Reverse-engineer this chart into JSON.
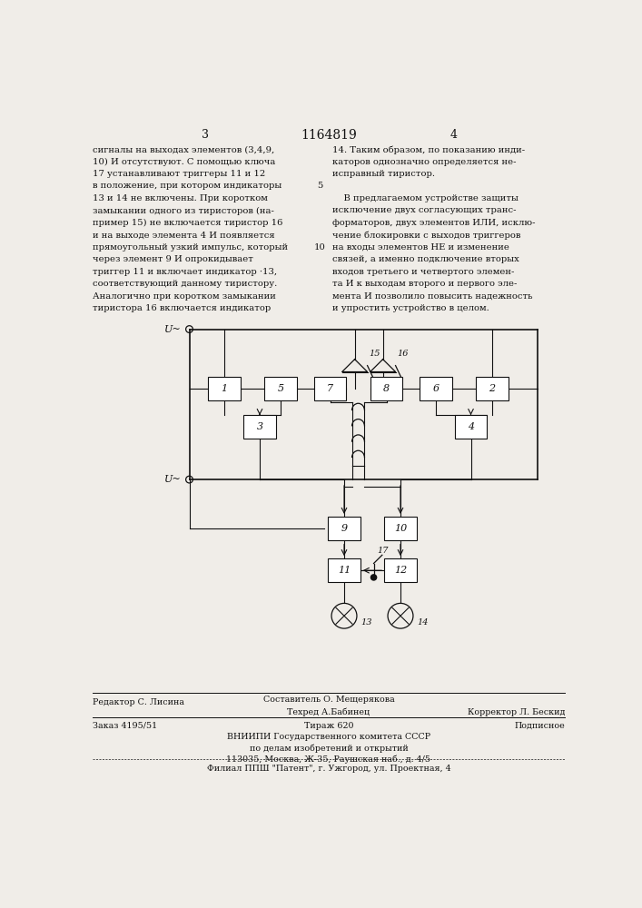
{
  "bg_color": "#f0ede8",
  "text_color": "#111111",
  "line_color": "#111111",
  "page_number_left": "3",
  "patent_number": "1164819",
  "page_number_right": "4",
  "col1_text": [
    "сигналы на выходах элементов (3,4,9,",
    "10) И отсутствуют. С помощью ключа",
    "17 устанавливают триггеры 11 и 12",
    "в положение, при котором индикаторы",
    "13 и 14 не включены. При коротком",
    "замыкании одного из тиристоров (на-",
    "пример 15) не включается тиристор 16",
    "и на выходе элемента 4 И появляется",
    "прямоугольный узкий импульс, который",
    "через элемент 9 И опрокидывает",
    "триггер 11 и включает индикатор ·13,",
    "соответствующий данному тиристору.",
    "Аналогично при коротком замыкании",
    "тиристора 16 включается индикатор"
  ],
  "col2_text": [
    "14. Таким образом, по показанию инди-",
    "каторов однозначно определяется не-",
    "исправный тиристор.",
    "",
    "    В предлагаемом устройстве защиты",
    "исключение двух согласующих транс-",
    "форматоров, двух элементов ИЛИ, исклю-",
    "чение блокировки с выходов триггеров",
    "на входы элементов НЕ и изменение",
    "связей, а именно подключение вторых",
    "входов третьего и четвертого элемен-",
    "та И к выходам второго и первого эле-",
    "мента И позволило повысить надежность",
    "и упростить устройство в целом."
  ],
  "line_numbers": [
    4,
    9
  ],
  "footer_editor": "Редактор С. Лисина",
  "footer_composer": "Составитель О. Мещерякова",
  "footer_techred": "Техред А.Бабинец",
  "footer_corrector": "Корректор Л. Бескид",
  "footer_order": "Заказ 4195/51",
  "footer_tirazh": "Тираж 620",
  "footer_podpisnoe": "Подписное",
  "footer_vnipi": "ВНИИПИ Государственного комитета СССР",
  "footer_po_delam": "по делам изобретений и открытий",
  "footer_address": "113035, Москва, Ж-35, Раушская наб., д. 4/5",
  "footer_filial": "Филиал ППШ \"Патент\", г. Ужгород, ул. Проектная, 4"
}
